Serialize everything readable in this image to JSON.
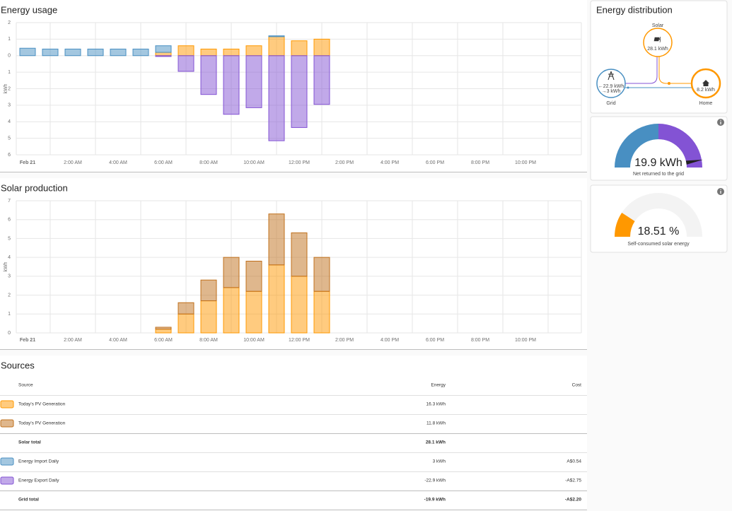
{
  "chart_data": [
    {
      "type": "bar",
      "stacked": true,
      "title": "Energy usage",
      "ylabel": "kWh",
      "categories": [
        "Feb 21",
        null,
        "2:00 AM",
        null,
        "4:00 AM",
        null,
        "6:00 AM",
        null,
        "8:00 AM",
        null,
        "10:00 AM",
        null,
        "12:00 PM",
        null,
        "2:00 PM",
        null,
        "4:00 PM",
        null,
        "6:00 PM",
        null,
        "8:00 PM",
        null,
        "10:00 PM",
        null
      ],
      "series": [
        {
          "color": "#ff9800",
          "values": [
            null,
            null,
            null,
            null,
            null,
            null,
            0.2,
            0.6,
            0.4,
            0.4,
            0.6,
            1.15,
            0.9,
            1.0,
            null,
            null,
            null,
            null,
            null,
            null,
            null,
            null,
            null,
            null
          ]
        },
        {
          "color": "#488fc2",
          "values": [
            0.45,
            0.4,
            0.4,
            0.4,
            0.4,
            0.4,
            0.4,
            null,
            null,
            null,
            null,
            0.05,
            null,
            null,
            null,
            null,
            null,
            null,
            null,
            null,
            null,
            null,
            null,
            null
          ]
        },
        {
          "color": "#8353d4",
          "values": [
            null,
            null,
            null,
            null,
            null,
            null,
            -0.05,
            -0.95,
            -2.35,
            -3.55,
            -3.15,
            -5.15,
            -4.35,
            -2.95,
            null,
            null,
            null,
            null,
            null,
            null,
            null,
            null,
            null,
            null
          ]
        }
      ],
      "ylim": [
        -6,
        2
      ],
      "yticks": [
        2,
        1,
        0,
        {
          "value": -1,
          "label": "1"
        },
        {
          "value": -2,
          "label": "2"
        },
        {
          "value": -3,
          "label": "3"
        },
        {
          "value": -4,
          "label": "4"
        },
        {
          "value": -5,
          "label": "5"
        },
        {
          "value": -6,
          "label": "6"
        }
      ],
      "grid": true
    },
    {
      "type": "bar",
      "stacked": true,
      "title": "Solar production",
      "ylabel": "kWh",
      "categories": [
        "Feb 21",
        null,
        "2:00 AM",
        null,
        "4:00 AM",
        null,
        "6:00 AM",
        null,
        "8:00 AM",
        null,
        "10:00 AM",
        null,
        "12:00 PM",
        null,
        "2:00 PM",
        null,
        "4:00 PM",
        null,
        "6:00 PM",
        null,
        "8:00 PM",
        null,
        "10:00 PM",
        null
      ],
      "series": [
        {
          "color": "#ff9800",
          "values": [
            null,
            null,
            null,
            null,
            null,
            null,
            0.2,
            1.0,
            1.7,
            2.4,
            2.2,
            3.6,
            3.0,
            2.2,
            null,
            null,
            null,
            null,
            null,
            null,
            null,
            null,
            null,
            null
          ]
        },
        {
          "color": "#c0701c",
          "values": [
            null,
            null,
            null,
            null,
            null,
            null,
            0.1,
            0.6,
            1.1,
            1.6,
            1.6,
            2.7,
            2.3,
            1.8,
            null,
            null,
            null,
            null,
            null,
            null,
            null,
            null,
            null,
            null
          ]
        }
      ],
      "ylim": [
        0,
        7
      ],
      "yticks": [
        0,
        1,
        2,
        3,
        4,
        5,
        6,
        7
      ],
      "grid": true
    }
  ],
  "distribution": {
    "title": "Energy distribution",
    "solar_label": "Solar",
    "solar_value": "28.1 kWh",
    "grid_label": "Grid",
    "grid_export": "←22.9 kWh",
    "grid_import": "→3 kWh",
    "home_label": "Home",
    "home_value": "8.2 kWh"
  },
  "gauge_grid": {
    "value_label": "19.9 kWh",
    "caption": "Net returned to the grid"
  },
  "gauge_self_consumed": {
    "value": 18.51,
    "value_label": "18.51 %",
    "caption": "Self-consumed solar energy",
    "color": "#ff9800"
  },
  "sources": {
    "title": "Sources",
    "headers": [
      "Source",
      "Energy",
      "Cost"
    ],
    "rows": [
      {
        "source": "Today's PV Generation",
        "energy": "16.3 kWh"
      },
      {
        "source": "Today's PV Generation",
        "energy": "11.8 kWh"
      },
      {
        "source": "Solar total",
        "energy": "28.1 kWh"
      },
      {
        "source": "Energy Import Daily",
        "energy": "3 kWh",
        "cost": "A$0.54"
      },
      {
        "source": "Energy Export Daily",
        "energy": "-22.9 kWh",
        "cost": "-A$2.75"
      },
      {
        "source": "Grid total",
        "energy": "-19.9 kWh",
        "cost": "-A$2.20"
      }
    ]
  }
}
